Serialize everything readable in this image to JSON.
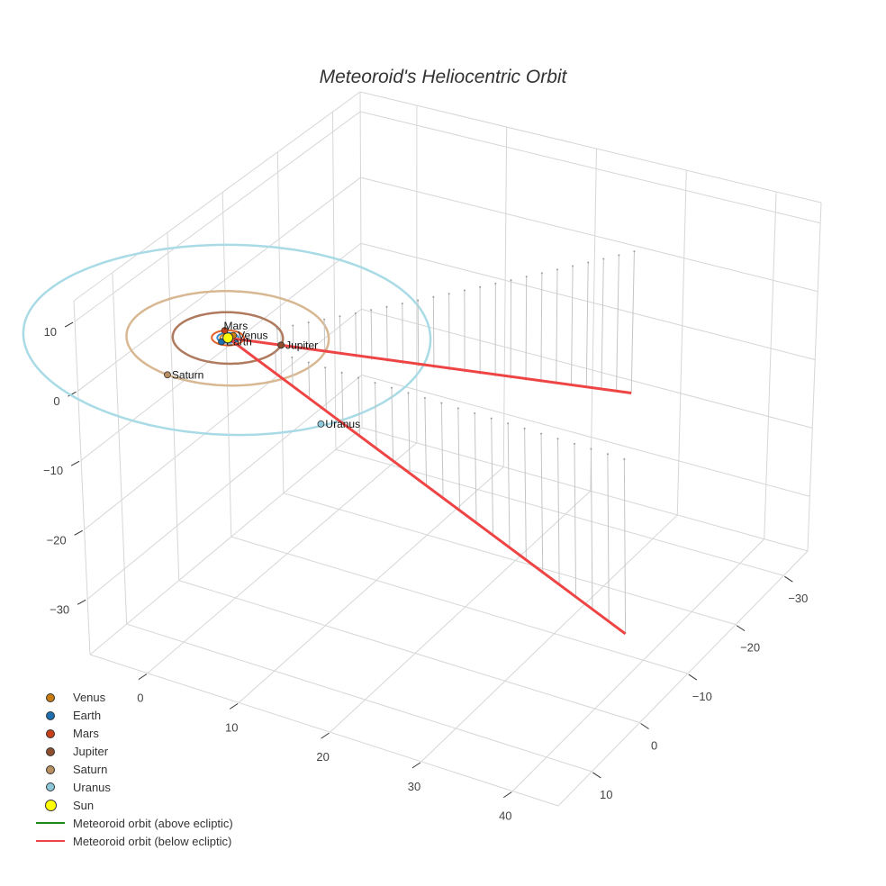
{
  "chart_data": {
    "type": "scatter3d",
    "title": "Meteoroid's Heliocentric Orbit",
    "axes": {
      "x": {
        "range": [
          -6.3,
          45
        ],
        "ticks": [
          0,
          10,
          20,
          30,
          40
        ],
        "tick_labels": [
          "0",
          "10",
          "20",
          "30",
          "40"
        ]
      },
      "y": {
        "range": [
          -35,
          17
        ],
        "ticks": [
          -30,
          -20,
          -10,
          0,
          10
        ],
        "tick_labels": [
          "−30",
          "−20",
          "−10",
          "0",
          "10"
        ]
      },
      "z": {
        "range": [
          -38,
          13
        ],
        "ticks": [
          -30,
          -20,
          -10,
          0,
          10
        ],
        "tick_labels": [
          "−30",
          "−20",
          "−10",
          "0",
          "10"
        ]
      },
      "grid": true
    },
    "orbits": [
      {
        "name": "Venus",
        "radius": 0.72,
        "color": "#d08a2a"
      },
      {
        "name": "Earth",
        "radius": 1.0,
        "color": "#3b8fd0"
      },
      {
        "name": "Mars",
        "radius": 1.52,
        "color": "#e0602a"
      },
      {
        "name": "Jupiter",
        "radius": 5.2,
        "color": "#b07a5e"
      },
      {
        "name": "Saturn",
        "radius": 9.54,
        "color": "#d8b892"
      },
      {
        "name": "Uranus",
        "radius": 19.2,
        "color": "#a9dbe6"
      }
    ],
    "planets": [
      {
        "name": "Venus",
        "x": 0.2,
        "y": -0.68,
        "z": 0,
        "color": "#c77c12"
      },
      {
        "name": "Earth",
        "x": -0.1,
        "y": 1.0,
        "z": 0,
        "color": "#1b6fae"
      },
      {
        "name": "Mars",
        "x": -1.0,
        "y": -1.1,
        "z": 0,
        "color": "#c8401a"
      },
      {
        "name": "Jupiter",
        "x": 5.0,
        "y": -1.4,
        "z": 0,
        "color": "#8e4d2c"
      },
      {
        "name": "Saturn",
        "x": -1.0,
        "y": 9.5,
        "z": 0,
        "color": "#b98e60"
      },
      {
        "name": "Uranus",
        "x": 16.0,
        "y": 10.0,
        "z": 0,
        "color": "#8cc8da"
      }
    ],
    "sun": {
      "name": "Sun",
      "x": 0,
      "y": 0,
      "z": 0,
      "color": "#ffff00"
    },
    "meteoroid": {
      "above_label": "Meteoroid orbit (above ecliptic)",
      "below_label": "Meteoroid orbit (below ecliptic)",
      "above_color": "#1a8a1a",
      "below_color": "#ee4444",
      "below_segments": [
        [
          [
            0,
            0,
            0
          ],
          [
            25,
            -34,
            -21
          ]
        ],
        [
          [
            0,
            0,
            0
          ],
          [
            44,
            1,
            -25
          ]
        ]
      ],
      "drop_line_counts": [
        24,
        22
      ]
    },
    "legend": [
      {
        "label": "Venus",
        "color": "#c77c12",
        "kind": "dot"
      },
      {
        "label": "Earth",
        "color": "#1b6fae",
        "kind": "dot"
      },
      {
        "label": "Mars",
        "color": "#c8401a",
        "kind": "dot"
      },
      {
        "label": "Jupiter",
        "color": "#8e4d2c",
        "kind": "dot"
      },
      {
        "label": "Saturn",
        "color": "#b98e60",
        "kind": "dot"
      },
      {
        "label": "Uranus",
        "color": "#8cc8da",
        "kind": "dot"
      },
      {
        "label": "Sun",
        "color": "#ffff00",
        "kind": "sun"
      },
      {
        "label": "Meteoroid orbit (above ecliptic)",
        "color": "#1a8a1a",
        "kind": "line"
      },
      {
        "label": "Meteoroid orbit (below ecliptic)",
        "color": "#ee4444",
        "kind": "line"
      }
    ],
    "legend_position": "bottom-left"
  }
}
